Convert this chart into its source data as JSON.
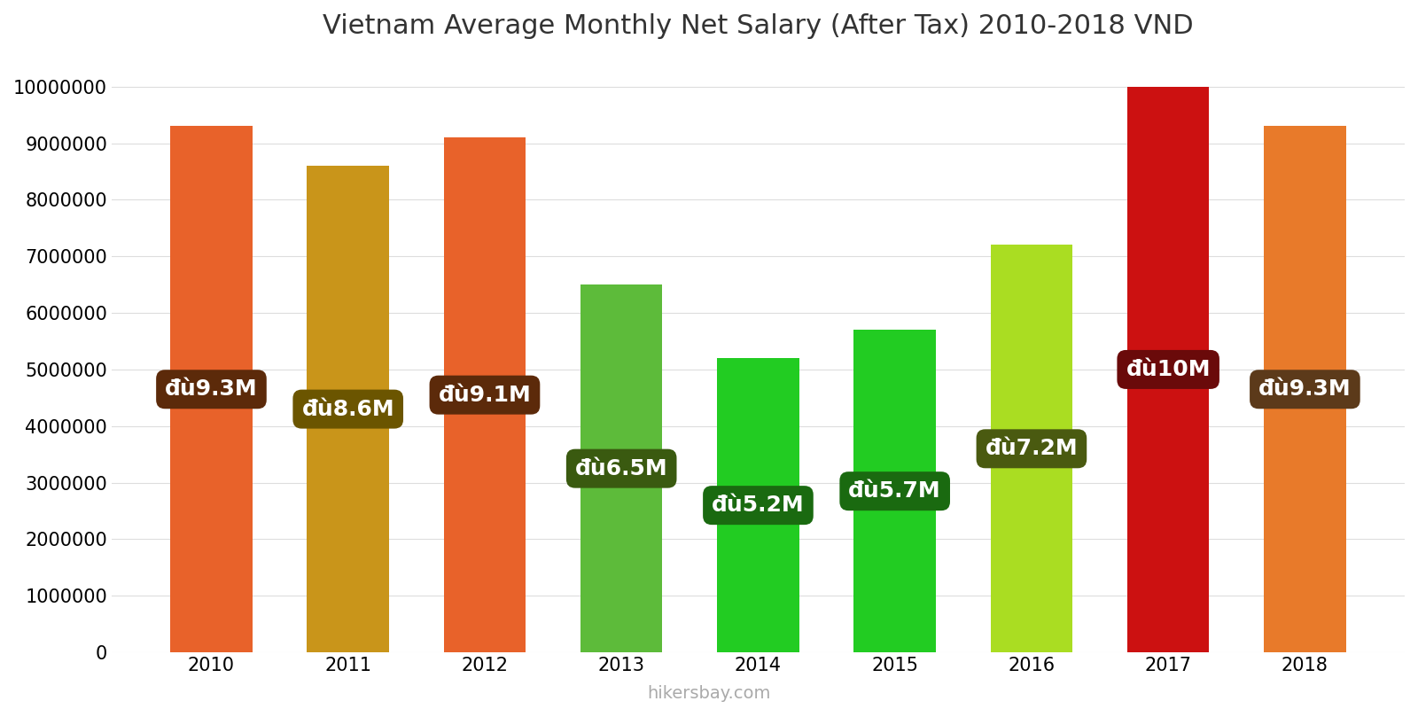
{
  "title": "Vietnam Average Monthly Net Salary (After Tax) 2010-2018 VND",
  "years": [
    2010,
    2011,
    2012,
    2013,
    2014,
    2015,
    2016,
    2017,
    2018
  ],
  "values": [
    9300000,
    8600000,
    9100000,
    6500000,
    5200000,
    5700000,
    7200000,
    10000000,
    9300000
  ],
  "bar_colors": [
    "#E8622A",
    "#C9951A",
    "#E8622A",
    "#5DBB3A",
    "#22CC22",
    "#22CC22",
    "#AADD22",
    "#CC1111",
    "#E87A2A"
  ],
  "label_bg_colors": [
    "#5C2A0A",
    "#6B5500",
    "#5C2A0A",
    "#3A5A10",
    "#1A6A10",
    "#1A6A10",
    "#4A5A10",
    "#6A0A0A",
    "#5C3A1A"
  ],
  "labels": [
    "đù9.3M",
    "đù8.6M",
    "đù9.1M",
    "đù6.5M",
    "đù5.2M",
    "đù5.7M",
    "đù7.2M",
    "đù10M",
    "đù9.3M"
  ],
  "ylim": [
    0,
    10500000
  ],
  "yticks": [
    0,
    1000000,
    2000000,
    3000000,
    4000000,
    5000000,
    6000000,
    7000000,
    8000000,
    9000000,
    10000000
  ],
  "footer": "hikersbay.com",
  "title_fontsize": 22,
  "label_fontsize": 18,
  "tick_fontsize": 15,
  "footer_fontsize": 14,
  "background_color": "#ffffff"
}
